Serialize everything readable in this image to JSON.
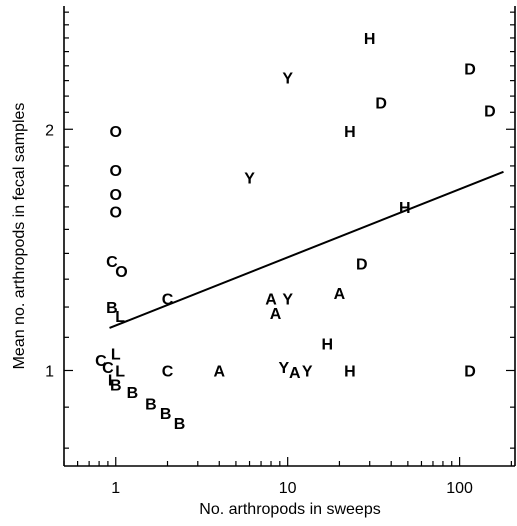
{
  "chart_data": {
    "type": "scatter",
    "title": "",
    "xlabel": "No. arthropods in sweeps",
    "ylabel": "Mean no. arthropods in fecal samples",
    "x_scale": "log",
    "y_scale": "log",
    "xlim": [
      0.5,
      210
    ],
    "ylim": [
      0.76,
      2.85
    ],
    "grid": false,
    "x_ticks": [
      {
        "value": 1,
        "label": "1"
      },
      {
        "value": 10,
        "label": "10"
      },
      {
        "value": 100,
        "label": "100"
      }
    ],
    "y_ticks": [
      {
        "value": 1,
        "label": "1"
      },
      {
        "value": 2,
        "label": "2"
      }
    ],
    "points": [
      {
        "label": "H",
        "x": 30,
        "y": 2.6
      },
      {
        "label": "D",
        "x": 115,
        "y": 2.38
      },
      {
        "label": "Y",
        "x": 10,
        "y": 2.32
      },
      {
        "label": "D",
        "x": 35,
        "y": 2.16
      },
      {
        "label": "D",
        "x": 150,
        "y": 2.11
      },
      {
        "label": "H",
        "x": 23,
        "y": 1.99
      },
      {
        "label": "O",
        "x": 1.0,
        "y": 1.99
      },
      {
        "label": "O",
        "x": 1.0,
        "y": 1.78
      },
      {
        "label": "Y",
        "x": 6,
        "y": 1.74
      },
      {
        "label": "O",
        "x": 1.0,
        "y": 1.66
      },
      {
        "label": "O",
        "x": 1.0,
        "y": 1.58
      },
      {
        "label": "H",
        "x": 48,
        "y": 1.6
      },
      {
        "label": "C",
        "x": 0.95,
        "y": 1.37
      },
      {
        "label": "O",
        "x": 1.08,
        "y": 1.33
      },
      {
        "label": "D",
        "x": 27,
        "y": 1.36
      },
      {
        "label": "A",
        "x": 20,
        "y": 1.25
      },
      {
        "label": "C",
        "x": 2.0,
        "y": 1.23
      },
      {
        "label": "A",
        "x": 8,
        "y": 1.23
      },
      {
        "label": "Y",
        "x": 10,
        "y": 1.23
      },
      {
        "label": "B",
        "x": 0.95,
        "y": 1.2
      },
      {
        "label": "L",
        "x": 1.06,
        "y": 1.17
      },
      {
        "label": "A",
        "x": 8.5,
        "y": 1.18
      },
      {
        "label": "H",
        "x": 17,
        "y": 1.08
      },
      {
        "label": "L",
        "x": 1.0,
        "y": 1.05
      },
      {
        "label": "C",
        "x": 0.82,
        "y": 1.03
      },
      {
        "label": "C",
        "x": 0.9,
        "y": 1.01
      },
      {
        "label": "Y",
        "x": 9.5,
        "y": 1.01
      },
      {
        "label": "L",
        "x": 1.06,
        "y": 1.0
      },
      {
        "label": "C",
        "x": 2.0,
        "y": 1.0
      },
      {
        "label": "A",
        "x": 4,
        "y": 1.0
      },
      {
        "label": "A",
        "x": 11,
        "y": 0.995
      },
      {
        "label": "Y",
        "x": 13,
        "y": 1.0
      },
      {
        "label": "H",
        "x": 23,
        "y": 1.0
      },
      {
        "label": "D",
        "x": 115,
        "y": 1.0
      },
      {
        "label": "L",
        "x": 0.96,
        "y": 0.975
      },
      {
        "label": "B",
        "x": 1.0,
        "y": 0.96
      },
      {
        "label": "B",
        "x": 1.25,
        "y": 0.94
      },
      {
        "label": "B",
        "x": 1.6,
        "y": 0.91
      },
      {
        "label": "B",
        "x": 1.95,
        "y": 0.885
      },
      {
        "label": "B",
        "x": 2.35,
        "y": 0.86
      }
    ],
    "regression_line": {
      "x": [
        0.92,
        180
      ],
      "y": [
        1.13,
        1.77
      ]
    }
  }
}
